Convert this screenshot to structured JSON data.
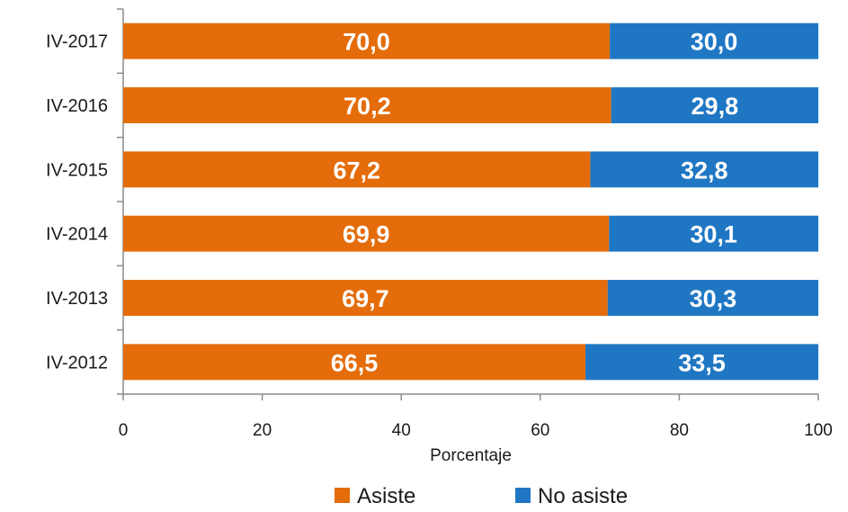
{
  "chart_data": {
    "type": "bar",
    "orientation": "horizontal",
    "stacked": true,
    "categories": [
      "IV-2017",
      "IV-2016",
      "IV-2015",
      "IV-2014",
      "IV-2013",
      "IV-2012"
    ],
    "series": [
      {
        "name": "Asiste",
        "color": "#E46C0A",
        "values": [
          70.0,
          70.2,
          67.2,
          69.9,
          69.7,
          66.5
        ],
        "labels": [
          "70,0",
          "70,2",
          "67,2",
          "69,9",
          "69,7",
          "66,5"
        ]
      },
      {
        "name": "No asiste",
        "color": "#1F77C4",
        "values": [
          30.0,
          29.8,
          32.8,
          30.1,
          30.3,
          33.5
        ],
        "labels": [
          "30,0",
          "29,8",
          "32,8",
          "30,1",
          "30,3",
          "33,5"
        ]
      }
    ],
    "xlabel": "Porcentaje",
    "ylabel": "",
    "xlim": [
      0,
      100
    ],
    "xticks": [
      0,
      20,
      40,
      60,
      80,
      100
    ],
    "grid": false,
    "legend_position": "bottom"
  }
}
